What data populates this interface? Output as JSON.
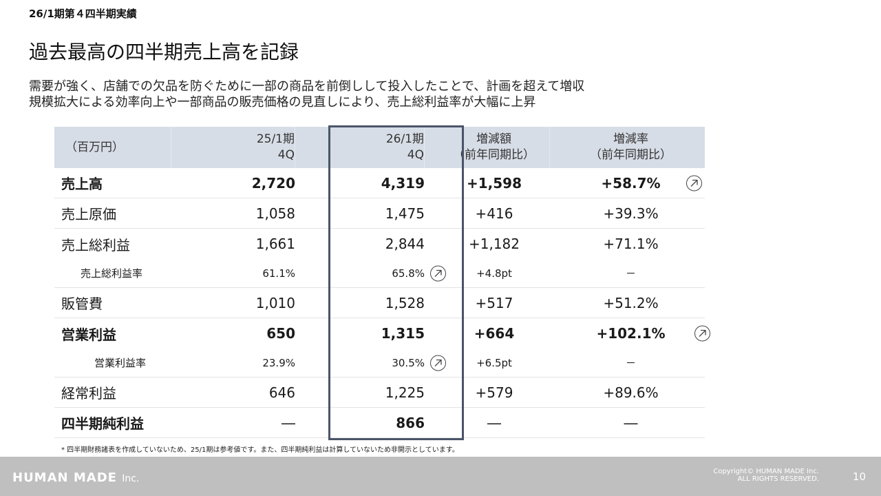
{
  "header": {
    "section": "26/1期第４四半期実績",
    "headline": "過去最高の四半期売上高を記録",
    "description_line1": "需要が強く、店舗での欠品を防ぐために一部の商品を前倒しして投入したことで、計画を超えて増収",
    "description_line2": "規模拡大による効率向上や一部商品の販売価格の見直しにより、売上総利益率が大幅に上昇"
  },
  "table": {
    "columns": [
      {
        "line1": "（百万円）",
        "line2": ""
      },
      {
        "line1": "25/1期",
        "line2": "4Q"
      },
      {
        "line1": "26/1期",
        "line2": "4Q"
      },
      {
        "line1": "増減額",
        "line2": "（前年同期比）"
      },
      {
        "line1": "増減率",
        "line2": "（前年同期比）"
      }
    ],
    "rows": [
      {
        "label": "売上高",
        "prev": "2,720",
        "curr": "4,319",
        "diff": "+1,598",
        "rate": "+58.7%"
      },
      {
        "label": "売上原価",
        "prev": "1,058",
        "curr": "1,475",
        "diff": "+416",
        "rate": "+39.3%"
      },
      {
        "label": "売上総利益",
        "prev": "1,661",
        "curr": "2,844",
        "diff": "+1,182",
        "rate": "+71.1%"
      },
      {
        "label": "売上総利益率",
        "prev": "61.1%",
        "curr": "65.8%",
        "diff": "+4.8pt",
        "rate": "－"
      },
      {
        "label": "販管費",
        "prev": "1,010",
        "curr": "1,528",
        "diff": "+517",
        "rate": "+51.2%"
      },
      {
        "label": "営業利益",
        "prev": "650",
        "curr": "1,315",
        "diff": "+664",
        "rate": "+102.1%"
      },
      {
        "label": "営業利益率",
        "prev": "23.9%",
        "curr": "30.5%",
        "diff": "+6.5pt",
        "rate": "－"
      },
      {
        "label": "経常利益",
        "prev": "646",
        "curr": "1,225",
        "diff": "+579",
        "rate": "+89.6%"
      },
      {
        "label": "四半期純利益",
        "prev": "―",
        "curr": "866",
        "diff": "―",
        "rate": "―"
      }
    ]
  },
  "footnote": "* 四半期財務諸表を作成していないため、25/1期は参考値です。また、四半期純利益は計算していないため非開示としています。",
  "footer": {
    "brand": "HUMAN MADE",
    "brand_suffix": "Inc.",
    "copyright_line1": "Copyright© HUMAN MADE Inc.",
    "copyright_line2": "ALL RIGHTS RESERVED.",
    "page_number": "10"
  },
  "icons": {
    "up_arrow": "arrow-up-right-circle-icon"
  },
  "colors": {
    "header_bg": "#d7dde6",
    "highlight_border": "#4a5468",
    "footer_bg": "#bfbfbf"
  }
}
